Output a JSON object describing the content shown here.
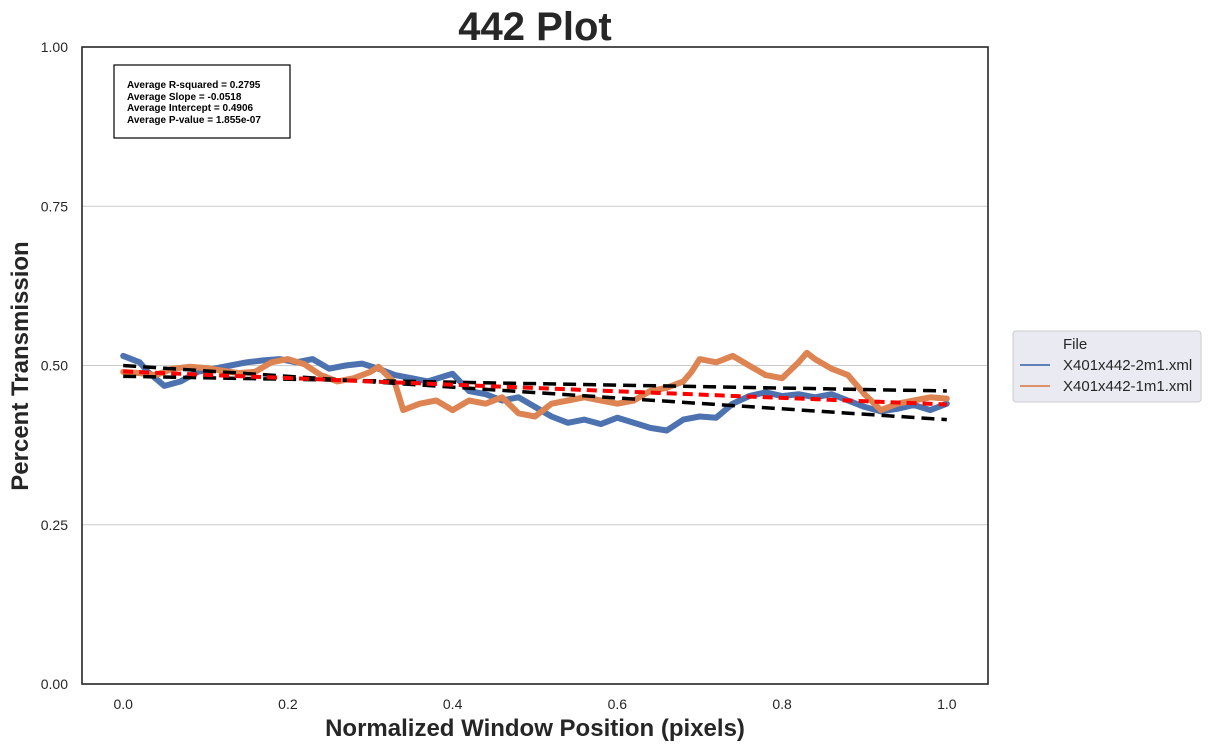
{
  "chart_data": {
    "type": "line",
    "title": "442 Plot",
    "xlabel": "Normalized Window Position (pixels)",
    "ylabel": "Percent Transmission",
    "xlim": [
      -0.05,
      1.05
    ],
    "ylim": [
      0.0,
      1.0
    ],
    "x_ticks": [
      0.0,
      0.2,
      0.4,
      0.6,
      0.8,
      1.0
    ],
    "x_tick_labels": [
      "0.0",
      "0.2",
      "0.4",
      "0.6",
      "0.8",
      "1.0"
    ],
    "y_ticks": [
      0.0,
      0.25,
      0.5,
      0.75,
      1.0
    ],
    "y_tick_labels": [
      "0.00",
      "0.25",
      "0.50",
      "0.75",
      "1.00"
    ],
    "grid": "horizontal",
    "stats_box": [
      "Average R-squared = 0.2795",
      "Average Slope = -0.0518",
      "Average Intercept = 0.4906",
      "Average P-value = 1.855e-07"
    ],
    "legend": {
      "title": "File",
      "placement": "outside-right"
    },
    "series": [
      {
        "name": "X401x442-2m1.xml",
        "color": "#4c72b0",
        "x": [
          0.0,
          0.02,
          0.03,
          0.05,
          0.07,
          0.09,
          0.11,
          0.13,
          0.15,
          0.17,
          0.19,
          0.21,
          0.23,
          0.25,
          0.27,
          0.29,
          0.31,
          0.33,
          0.35,
          0.37,
          0.39,
          0.4,
          0.42,
          0.44,
          0.46,
          0.48,
          0.5,
          0.52,
          0.54,
          0.56,
          0.58,
          0.6,
          0.62,
          0.64,
          0.66,
          0.68,
          0.7,
          0.72,
          0.74,
          0.76,
          0.78,
          0.8,
          0.82,
          0.84,
          0.86,
          0.88,
          0.9,
          0.92,
          0.94,
          0.96,
          0.98,
          1.0
        ],
        "y": [
          0.515,
          0.505,
          0.49,
          0.468,
          0.475,
          0.49,
          0.495,
          0.5,
          0.505,
          0.508,
          0.51,
          0.505,
          0.51,
          0.495,
          0.5,
          0.503,
          0.495,
          0.485,
          0.48,
          0.475,
          0.483,
          0.487,
          0.46,
          0.455,
          0.445,
          0.45,
          0.435,
          0.42,
          0.41,
          0.415,
          0.408,
          0.418,
          0.41,
          0.402,
          0.398,
          0.415,
          0.42,
          0.418,
          0.44,
          0.452,
          0.458,
          0.452,
          0.455,
          0.45,
          0.455,
          0.445,
          0.435,
          0.428,
          0.432,
          0.438,
          0.43,
          0.44
        ]
      },
      {
        "name": "X401x442-1m1.xml",
        "color": "#dd8452",
        "x": [
          0.0,
          0.02,
          0.04,
          0.06,
          0.08,
          0.1,
          0.12,
          0.14,
          0.16,
          0.18,
          0.2,
          0.22,
          0.24,
          0.26,
          0.28,
          0.3,
          0.31,
          0.33,
          0.34,
          0.36,
          0.38,
          0.4,
          0.42,
          0.44,
          0.46,
          0.48,
          0.5,
          0.52,
          0.54,
          0.56,
          0.58,
          0.6,
          0.62,
          0.64,
          0.66,
          0.68,
          0.69,
          0.7,
          0.72,
          0.74,
          0.76,
          0.78,
          0.8,
          0.82,
          0.83,
          0.84,
          0.86,
          0.88,
          0.9,
          0.92,
          0.94,
          0.96,
          0.98,
          1.0
        ],
        "y": [
          0.49,
          0.488,
          0.485,
          0.495,
          0.498,
          0.496,
          0.492,
          0.488,
          0.49,
          0.505,
          0.51,
          0.502,
          0.485,
          0.475,
          0.48,
          0.49,
          0.498,
          0.472,
          0.43,
          0.44,
          0.445,
          0.43,
          0.445,
          0.44,
          0.45,
          0.425,
          0.42,
          0.44,
          0.445,
          0.45,
          0.445,
          0.44,
          0.445,
          0.46,
          0.465,
          0.475,
          0.49,
          0.51,
          0.505,
          0.515,
          0.5,
          0.485,
          0.48,
          0.505,
          0.52,
          0.51,
          0.495,
          0.485,
          0.455,
          0.43,
          0.44,
          0.445,
          0.45,
          0.448
        ]
      }
    ],
    "trend_lines": [
      {
        "style": "black-dashed",
        "x": [
          0.0,
          1.0
        ],
        "y": [
          0.5,
          0.415
        ]
      },
      {
        "style": "black-dashed",
        "x": [
          0.0,
          1.0
        ],
        "y": [
          0.483,
          0.46
        ]
      },
      {
        "style": "red-dashed",
        "x": [
          0.0,
          1.0
        ],
        "y": [
          0.4906,
          0.4388
        ]
      }
    ]
  }
}
